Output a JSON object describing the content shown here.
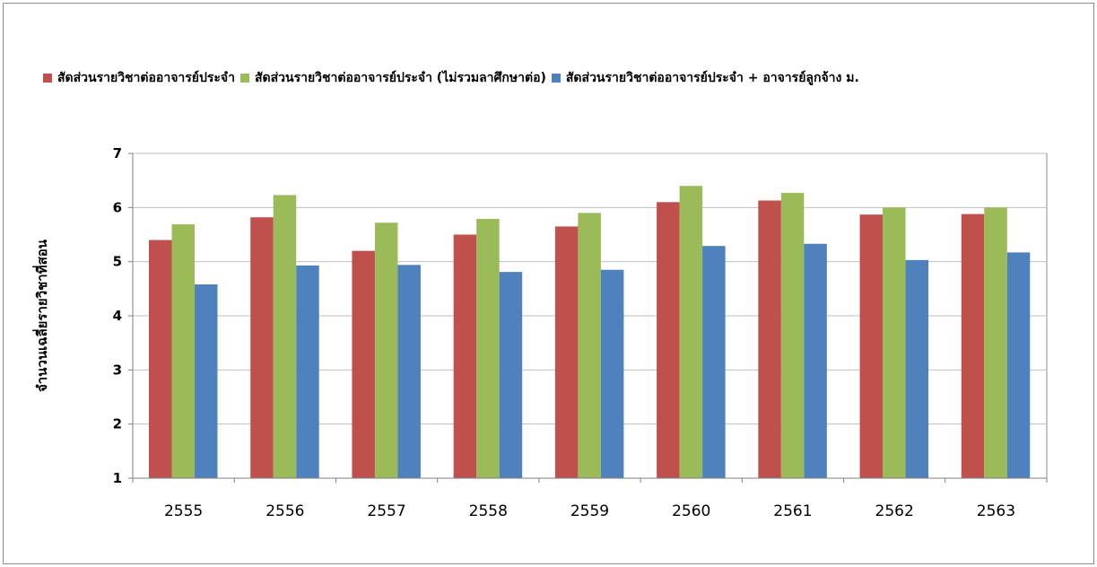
{
  "chart_data": {
    "type": "bar",
    "ylabel": "จำนวนเฉลี่ยรายวิชาที่สอน",
    "xlabel": "",
    "ylim": [
      1,
      7
    ],
    "yticks": [
      1,
      2,
      3,
      4,
      5,
      6,
      7
    ],
    "grid": true,
    "legend_position": "top",
    "categories": [
      "2555",
      "2556",
      "2557",
      "2558",
      "2559",
      "2560",
      "2561",
      "2562",
      "2563"
    ],
    "series": [
      {
        "name": "สัดส่วนรายวิชาต่ออาจารย์ประจำ",
        "color": "#c0504d",
        "values": [
          5.4,
          5.82,
          5.2,
          5.5,
          5.65,
          6.1,
          6.13,
          5.87,
          5.88
        ]
      },
      {
        "name": "สัดส่วนรายวิชาต่ออาจารย์ประจำ (ไม่รวมลาศึกษาต่อ)",
        "color": "#9bbb59",
        "values": [
          5.69,
          6.23,
          5.72,
          5.79,
          5.9,
          6.4,
          6.27,
          6.0,
          6.0
        ]
      },
      {
        "name": "สัดส่วนรายวิชาต่ออาจารย์ประจำ + อาจารย์ลูกจ้าง ม.",
        "color": "#4f81bd",
        "values": [
          4.58,
          4.93,
          4.94,
          4.81,
          4.85,
          5.29,
          5.33,
          5.03,
          5.17
        ]
      }
    ]
  }
}
